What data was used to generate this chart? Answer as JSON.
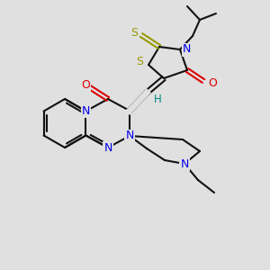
{
  "background_color": "#e0e0e0",
  "bond_color": "#111111",
  "atom_colors": {
    "N": "#0000ee",
    "O": "#dd0000",
    "S": "#999900",
    "H": "#008888",
    "C": "#111111"
  },
  "figsize": [
    3.0,
    3.0
  ],
  "dpi": 100
}
